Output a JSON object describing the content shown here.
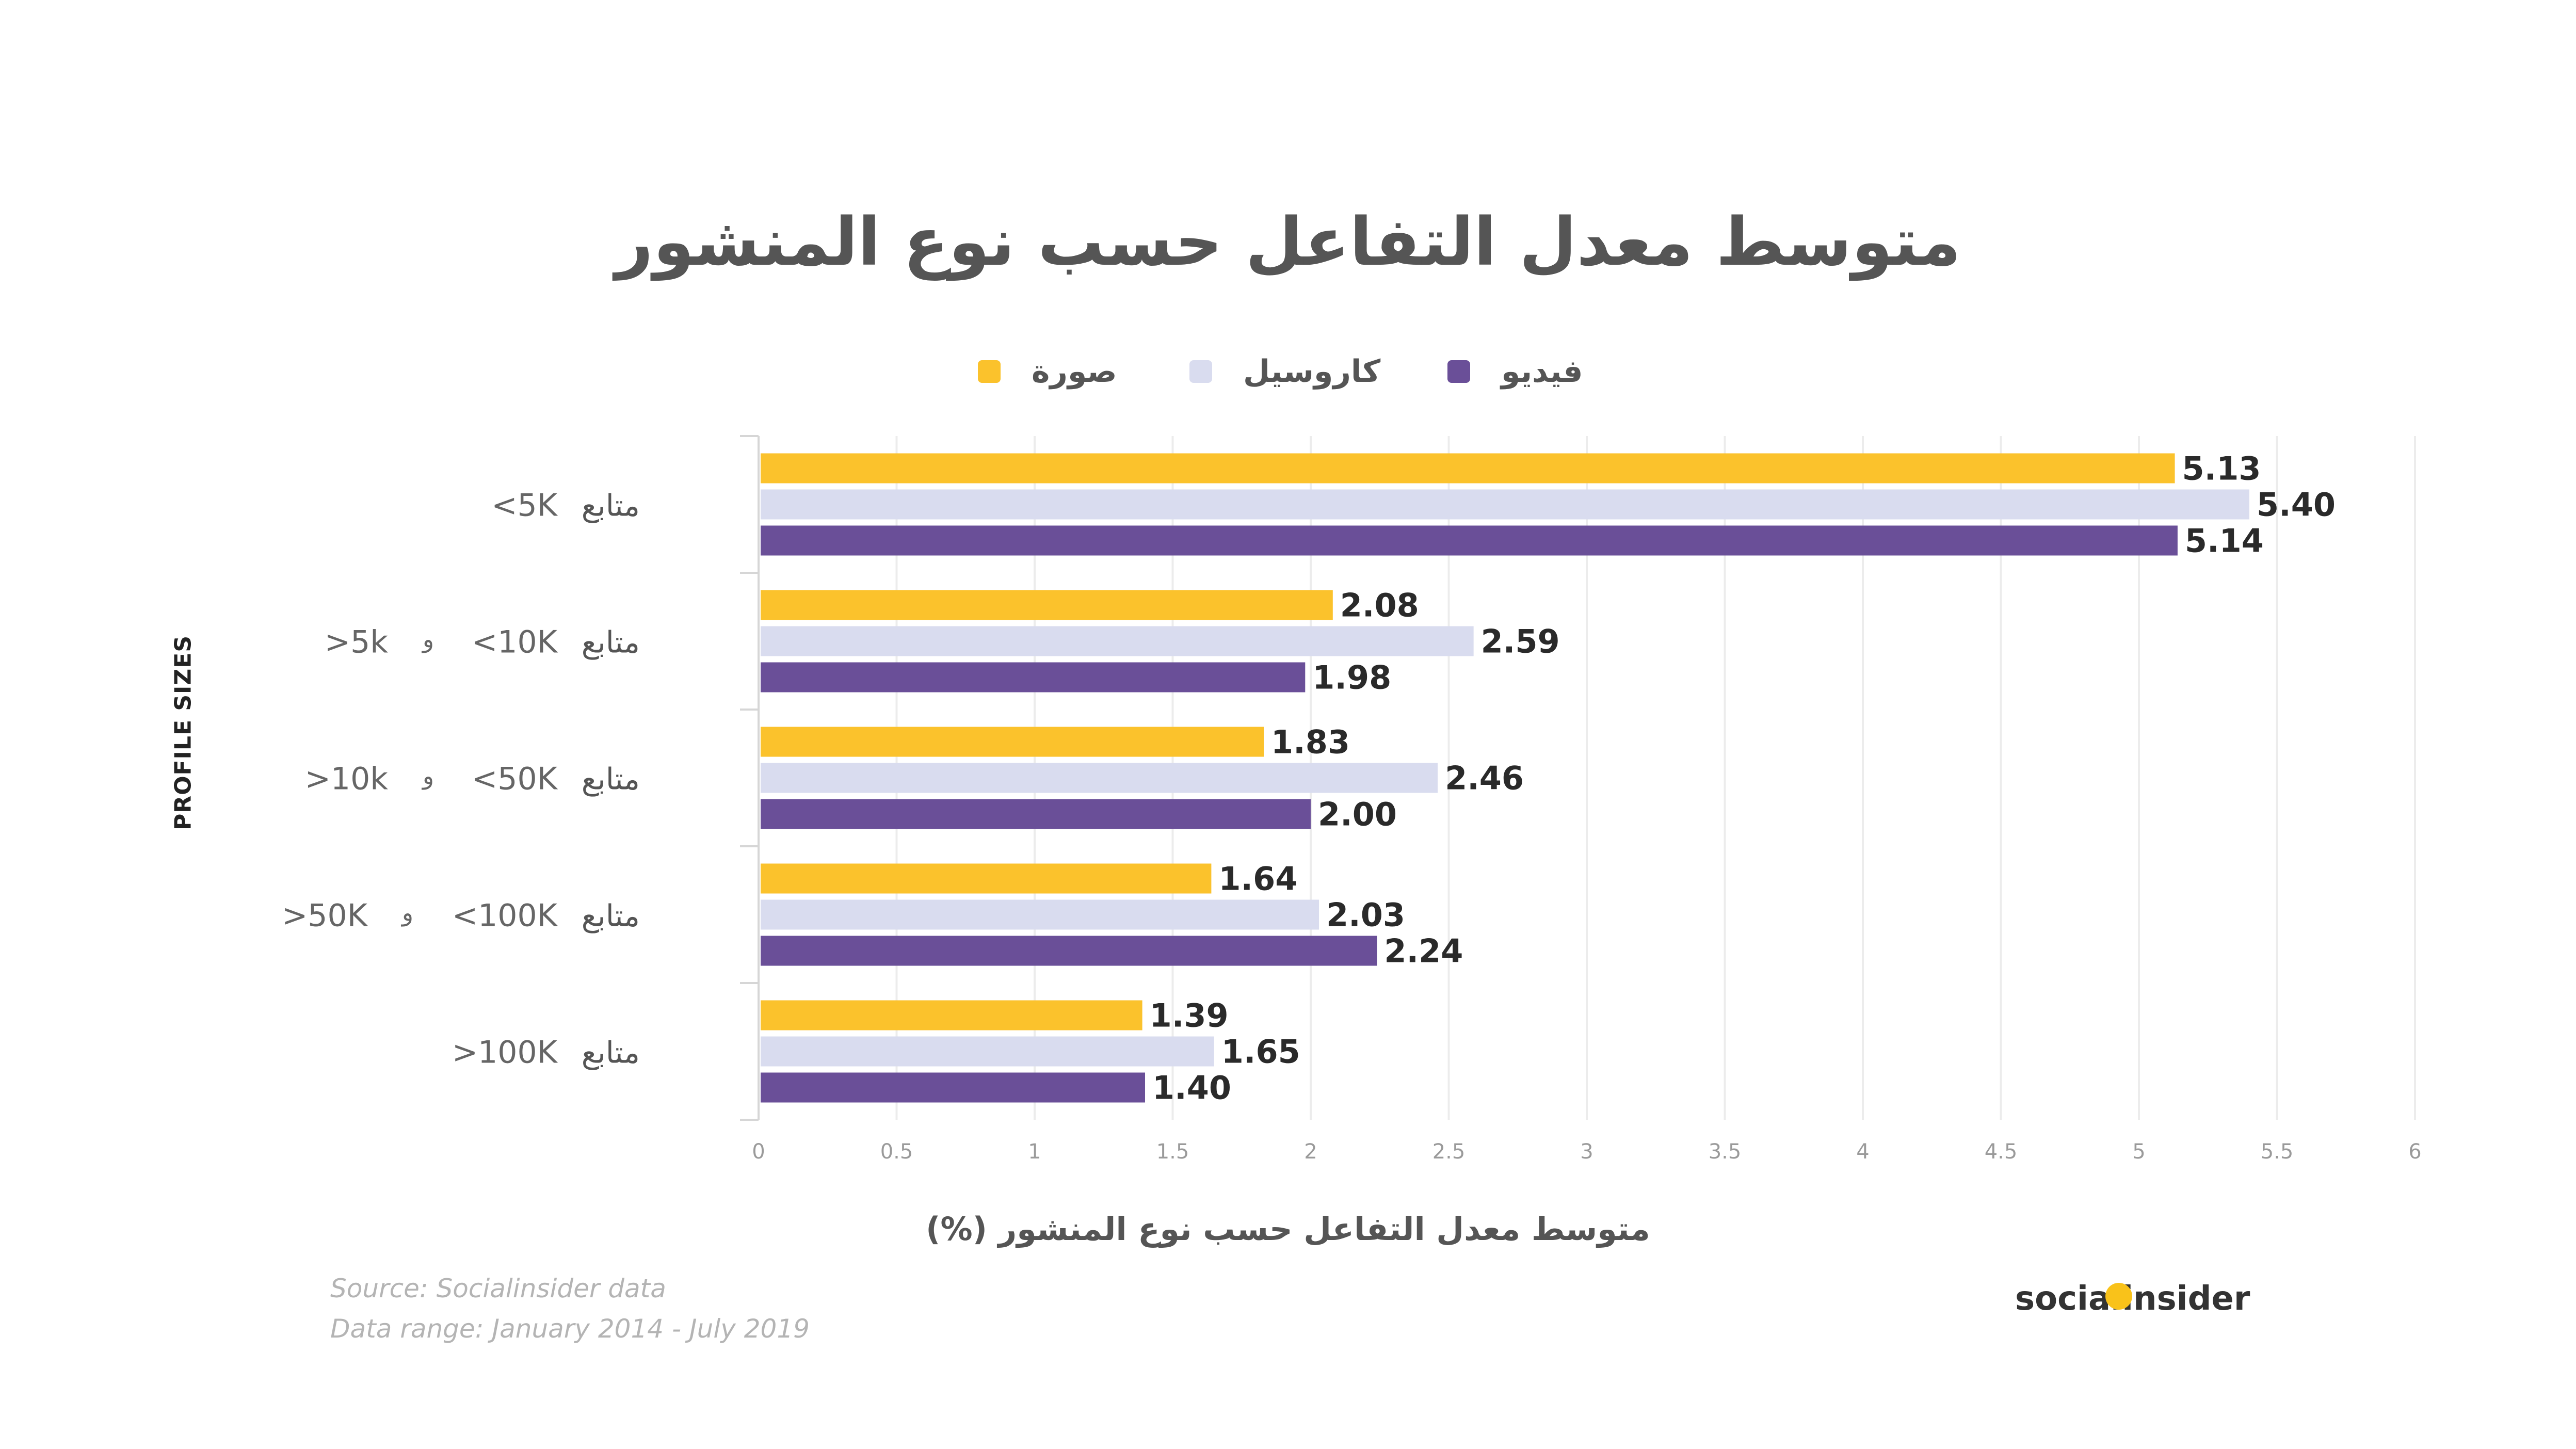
{
  "title": "متوسط معدل التفاعل حسب نوع المنشور",
  "legend": [
    {
      "label": "صورة",
      "color": "#fbc22c"
    },
    {
      "label": "كاروسيل",
      "color": "#d9dcef"
    },
    {
      "label": "فيديو",
      "color": "#6a4f98"
    }
  ],
  "source": {
    "line1": "Source: Socialinsider data",
    "line2": "Data range: January 2014 - July 2019"
  },
  "logo": {
    "text": "socialinsider",
    "dot_color": "#f9c21a"
  },
  "chart_data": {
    "type": "bar",
    "orientation": "horizontal",
    "title": "متوسط معدل التفاعل حسب نوع المنشور",
    "xlabel": "متوسط معدل التفاعل حسب نوع المنشور (%)",
    "ylabel": "PROFILE SIZES",
    "categories": [
      {
        "label": "متابع",
        "upper": "<5K",
        "joiner": "",
        "lower": ""
      },
      {
        "label": "متابع",
        "upper": "<10K",
        "joiner": "و",
        "lower": ">5k"
      },
      {
        "label": "متابع",
        "upper": "<50K",
        "joiner": "و",
        "lower": ">10k"
      },
      {
        "label": "متابع",
        "upper": "<100K",
        "joiner": "و",
        "lower": ">50K"
      },
      {
        "label": "متابع",
        "upper": ">100K",
        "joiner": "",
        "lower": ""
      }
    ],
    "series": [
      {
        "name": "صورة",
        "color": "#fbc22c",
        "values": [
          5.13,
          2.08,
          1.83,
          1.64,
          1.39
        ]
      },
      {
        "name": "كاروسيل",
        "color": "#d9dcef",
        "values": [
          5.4,
          2.59,
          2.46,
          2.03,
          1.65
        ]
      },
      {
        "name": "فيديو",
        "color": "#6a4f98",
        "values": [
          5.14,
          1.98,
          2.0,
          2.24,
          1.4
        ]
      }
    ],
    "xlim": [
      0,
      6
    ],
    "xticks": [
      "0",
      "0.5",
      "1",
      "1.5",
      "2",
      "2.5",
      "3",
      "3.5",
      "4",
      "4.5",
      "5",
      "5.5",
      "6"
    ],
    "grid": true,
    "legend_position": "top-center",
    "data_labels": true
  }
}
